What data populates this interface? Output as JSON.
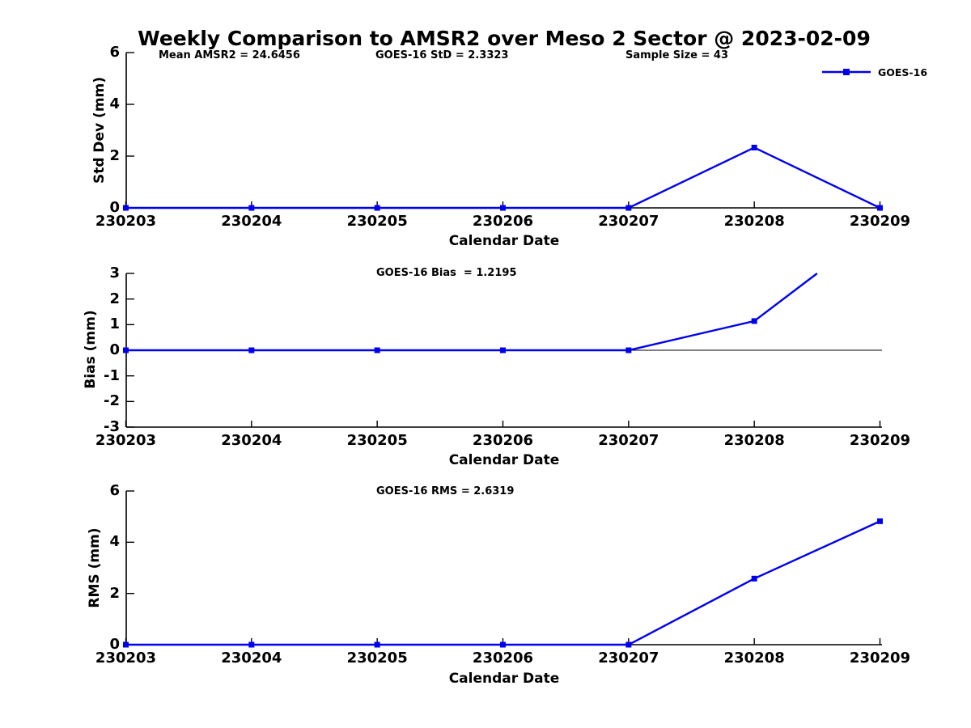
{
  "title": "Weekly Comparison to AMSR2 over Meso 2 Sector @ 2023-02-09",
  "legend": {
    "label": "GOES-16"
  },
  "colors": {
    "series_blue": "#0000EE",
    "axis_black": "#000000"
  },
  "chart_data": [
    {
      "type": "line",
      "panel": "std_dev",
      "annotations": [
        "Mean AMSR2 = 24.6456",
        "GOES-16 StD = 2.3323",
        "Sample Size = 43"
      ],
      "categories": [
        230203,
        230204,
        230205,
        230206,
        230207,
        230208,
        230209
      ],
      "series": [
        {
          "name": "GOES-16",
          "values": [
            0,
            0,
            0,
            0,
            0,
            2.33,
            0
          ]
        }
      ],
      "xlabel": "Calendar Date",
      "ylabel": "Std Dev (mm)",
      "ylim": [
        0,
        6
      ],
      "yticks": [
        0,
        2,
        4,
        6
      ],
      "grid": false,
      "marker": "square",
      "legend_position": "top-right-outside"
    },
    {
      "type": "line",
      "panel": "bias",
      "annotation": "GOES-16 Bias  = 1.2195",
      "categories": [
        230203,
        230204,
        230205,
        230206,
        230207,
        230208,
        230209
      ],
      "series": [
        {
          "name": "GOES-16",
          "values": [
            0,
            0,
            0,
            0,
            0,
            1.14,
            4.86
          ]
        }
      ],
      "clipped_to_ylim": true,
      "zero_line": true,
      "xlabel": "Calendar Date",
      "ylabel": "Bias (mm)",
      "ylim": [
        -3,
        3
      ],
      "yticks": [
        -3,
        -2,
        -1,
        0,
        1,
        2,
        3
      ],
      "grid": false,
      "marker": "square"
    },
    {
      "type": "line",
      "panel": "rms",
      "annotation": "GOES-16 RMS = 2.6319",
      "categories": [
        230203,
        230204,
        230205,
        230206,
        230207,
        230208,
        230209
      ],
      "series": [
        {
          "name": "GOES-16",
          "values": [
            0,
            0,
            0,
            0,
            0,
            2.58,
            4.82
          ]
        }
      ],
      "xlabel": "Calendar Date",
      "ylabel": "RMS (mm)",
      "ylim": [
        0,
        6
      ],
      "yticks": [
        0,
        2,
        4,
        6
      ],
      "grid": false,
      "marker": "square"
    }
  ]
}
